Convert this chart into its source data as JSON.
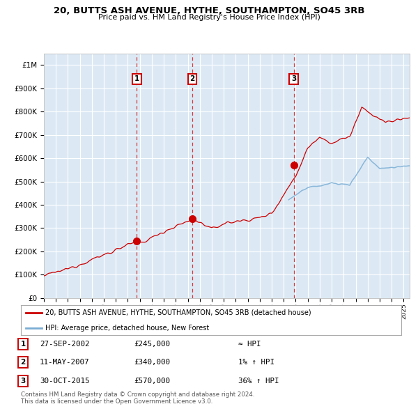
{
  "title": "20, BUTTS ASH AVENUE, HYTHE, SOUTHAMPTON, SO45 3RB",
  "subtitle": "Price paid vs. HM Land Registry's House Price Index (HPI)",
  "legend_line1": "20, BUTTS ASH AVENUE, HYTHE, SOUTHAMPTON, SO45 3RB (detached house)",
  "legend_line2": "HPI: Average price, detached house, New Forest",
  "transactions": [
    {
      "num": 1,
      "date": "27-SEP-2002",
      "price": 245000,
      "rel": "≈ HPI",
      "year": 2002.75
    },
    {
      "num": 2,
      "date": "11-MAY-2007",
      "price": 340000,
      "rel": "1% ↑ HPI",
      "year": 2007.37
    },
    {
      "num": 3,
      "date": "30-OCT-2015",
      "price": 570000,
      "rel": "36% ↑ HPI",
      "year": 2015.83
    }
  ],
  "footnote1": "Contains HM Land Registry data © Crown copyright and database right 2024.",
  "footnote2": "This data is licensed under the Open Government Licence v3.0.",
  "red_color": "#CC0000",
  "blue_color": "#7AADD4",
  "background_color": "#DCE9F5",
  "grid_color": "#FFFFFF",
  "ylim": [
    0,
    1050000
  ],
  "xlim_start": 1995.0,
  "xlim_end": 2025.5,
  "yticks": [
    0,
    100000,
    200000,
    300000,
    400000,
    500000,
    600000,
    700000,
    800000,
    900000,
    1000000
  ]
}
